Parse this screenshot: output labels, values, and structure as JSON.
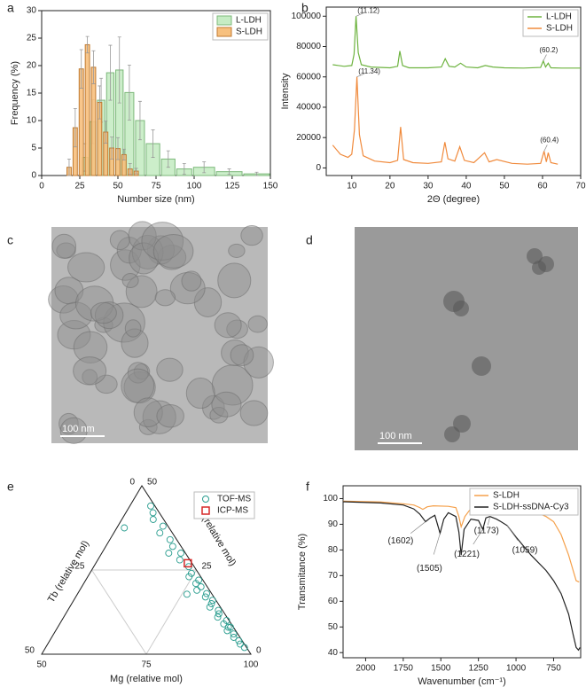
{
  "chart_data": [
    {
      "type": "histogram",
      "panel": "a",
      "xlabel": "Number size (nm)",
      "ylabel": "Frequency (%)",
      "xlim": [
        0,
        150
      ],
      "xticks": [
        0,
        25,
        50,
        75,
        100,
        125,
        150
      ],
      "ylim": [
        0,
        30
      ],
      "yticks": [
        0,
        5,
        10,
        15,
        20,
        25,
        30
      ],
      "legend": "upper right",
      "series": [
        {
          "name": "L-LDH",
          "color": "#c6ecc4",
          "edge": "#7cb87a",
          "bins": [
            26,
            31,
            36,
            42,
            48,
            54,
            61,
            68,
            78,
            88,
            99,
            114,
            132,
            150
          ],
          "values": [
            3.3,
            9.8,
            13.7,
            18.7,
            19.2,
            15.1,
            10.0,
            5.8,
            3.0,
            1.2,
            1.5,
            0.7,
            0.3
          ],
          "errors": [
            2.5,
            4,
            4,
            5,
            6,
            5,
            3.5,
            2.5,
            1.5,
            1,
            1,
            0.5,
            0.3
          ]
        },
        {
          "name": "S-LDH",
          "color": "#f7c07e",
          "edge": "#c07a30",
          "bins": [
            16,
            20,
            24,
            28,
            32,
            36,
            40,
            44,
            48,
            52,
            56,
            60,
            64
          ],
          "values": [
            1.5,
            8.7,
            19.4,
            23.8,
            19.7,
            13.3,
            7.9,
            5.0,
            4.9,
            3.8,
            1.2,
            0.8
          ],
          "errors": [
            1.5,
            3.5,
            3.5,
            1.5,
            3,
            3,
            2,
            2,
            2,
            1,
            1,
            0.5
          ]
        }
      ]
    },
    {
      "type": "line",
      "panel": "b",
      "xlabel": "2Θ (degree)",
      "ylabel": "Intensity",
      "xlim": [
        3.3,
        70
      ],
      "xticks": [
        10,
        20,
        30,
        40,
        50,
        60,
        70
      ],
      "ylim": [
        -5000,
        106000
      ],
      "yticks": [
        0,
        20000,
        40000,
        60000,
        80000,
        100000
      ],
      "legend": "upper right",
      "series": [
        {
          "name": "L-LDH",
          "color": "#6db33f",
          "x": [
            5,
            8,
            10,
            10.6,
            11.12,
            11.7,
            12.5,
            15,
            20,
            22,
            22.6,
            23.3,
            25,
            30,
            33.5,
            34.5,
            35.5,
            37,
            38.5,
            40,
            43,
            45,
            47,
            50,
            55,
            59.5,
            60.2,
            60.8,
            61.5,
            62.2,
            65,
            70
          ],
          "values": [
            68000,
            67000,
            67500,
            75000,
            100000,
            76000,
            68000,
            66500,
            66000,
            67000,
            77000,
            67500,
            66000,
            66000,
            66500,
            72000,
            67000,
            66500,
            69000,
            66500,
            66000,
            67500,
            66500,
            66000,
            65800,
            66200,
            70500,
            66500,
            69000,
            66000,
            65800,
            65800
          ]
        },
        {
          "name": "S-LDH",
          "color": "#f08a3c",
          "x": [
            5,
            7,
            9,
            10,
            10.7,
            11.34,
            12,
            13,
            16,
            20,
            22,
            22.8,
            23.6,
            26,
            30,
            33.5,
            34.4,
            35.2,
            37,
            38.3,
            39.5,
            42,
            44.8,
            46,
            48,
            52,
            56,
            59.5,
            60.4,
            61,
            61.5,
            62.2,
            64
          ],
          "values": [
            15000,
            9000,
            7000,
            9000,
            25000,
            60000,
            22000,
            8000,
            4500,
            3500,
            5000,
            27000,
            5500,
            3500,
            3000,
            4000,
            17000,
            6000,
            4500,
            14000,
            5000,
            3500,
            10000,
            4000,
            5500,
            3000,
            2500,
            3000,
            11000,
            4000,
            10000,
            3500,
            2500
          ]
        }
      ],
      "annotations": [
        {
          "text": "(11.12)",
          "x": 11.12,
          "y": 100000
        },
        {
          "text": "(60.2)",
          "x": 60.2,
          "y": 70500
        },
        {
          "text": "(11.34)",
          "x": 11.34,
          "y": 60000
        },
        {
          "text": "(60.4)",
          "x": 60.4,
          "y": 11000
        }
      ]
    },
    {
      "type": "ternary",
      "panel": "e",
      "tblabel": "Tb (relative mol)",
      "allabel": "Al (relative mol)",
      "mglabel": "Mg (relative mol)",
      "tblim": [
        0,
        50
      ],
      "allim": [
        0,
        50
      ],
      "mglim": [
        50,
        100
      ],
      "tbticks": [
        0,
        25,
        50
      ],
      "alticks": [
        0,
        25,
        50
      ],
      "mgticks": [
        50,
        75,
        100
      ],
      "legend": "upper right",
      "series": [
        {
          "name": "TOF-MS",
          "color": "#2a9d8f",
          "marker": "circle",
          "al": [
            2,
            3,
            4,
            5,
            6,
            7,
            8,
            9,
            10,
            11,
            12,
            13,
            14,
            15,
            16,
            17,
            18,
            19,
            20,
            21,
            22,
            23,
            24,
            26,
            28,
            30,
            32,
            34,
            36,
            38,
            40,
            42,
            44,
            17.8,
            37.5,
            30,
            8
          ],
          "tb": [
            0.5,
            1,
            0.8,
            1.5,
            1,
            2,
            1.2,
            1.8,
            0.6,
            2.2,
            1.4,
            1,
            2.5,
            1.6,
            0.8,
            2,
            1.2,
            3,
            1.5,
            2.2,
            1,
            2.8,
            1.7,
            1.3,
            2.4,
            1.1,
            2,
            1.6,
            3,
            1.2,
            2.5,
            1.5,
            1,
            6,
            10.7,
            4,
            0.7
          ]
        },
        {
          "name": "ICP-MS",
          "color": "#d62828",
          "marker": "square",
          "al": [
            27
          ],
          "tb": [
            1
          ]
        }
      ]
    },
    {
      "type": "line",
      "panel": "f",
      "xlabel": "Wavenumber (cm⁻¹)",
      "ylabel": "Transmitance (%)",
      "xlim": [
        2150,
        570
      ],
      "xticks": [
        2000,
        1750,
        1500,
        1250,
        1000,
        750
      ],
      "ylim": [
        38,
        105
      ],
      "yticks": [
        40,
        50,
        60,
        70,
        80,
        90,
        100
      ],
      "legend": "upper right",
      "series": [
        {
          "name": "S-LDH",
          "color": "#f5a04a",
          "x": [
            2150,
            1900,
            1750,
            1680,
            1640,
            1620,
            1590,
            1550,
            1450,
            1400,
            1380,
            1365,
            1340,
            1300,
            1200,
            1100,
            1000,
            900,
            800,
            750,
            700,
            650,
            620,
            600,
            580
          ],
          "values": [
            99,
            98.7,
            98,
            97.5,
            96.5,
            95.8,
            96.8,
            97.2,
            97,
            96.5,
            93,
            89,
            93,
            96.2,
            97,
            97,
            96.3,
            95.5,
            93,
            91,
            86,
            78,
            72,
            68,
            67.5
          ]
        },
        {
          "name": "S-LDH-ssDNA-Cy3",
          "color": "#222222",
          "x": [
            2150,
            1900,
            1750,
            1680,
            1640,
            1602,
            1570,
            1540,
            1505,
            1480,
            1450,
            1400,
            1380,
            1365,
            1345,
            1300,
            1250,
            1221,
            1200,
            1173,
            1130,
            1100,
            1059,
            1000,
            900,
            800,
            750,
            700,
            650,
            620,
            600,
            585,
            575
          ],
          "values": [
            98.8,
            98.3,
            97.5,
            96,
            94,
            91,
            92.5,
            93.5,
            86.5,
            92,
            94.5,
            93,
            87,
            78,
            88,
            92,
            91.5,
            88,
            92.5,
            93,
            92,
            91,
            89.5,
            85,
            78,
            72,
            68,
            63,
            55,
            47,
            42,
            41,
            42
          ]
        }
      ],
      "annotations": [
        {
          "text": "(1602)",
          "x": 1602,
          "y": 91
        },
        {
          "text": "(1505)",
          "x": 1505,
          "y": 86.5
        },
        {
          "text": "(1221)",
          "x": 1221,
          "y": 88
        },
        {
          "text": "(1173)",
          "x": 1173,
          "y": 93
        },
        {
          "text": "(1059)",
          "x": 1059,
          "y": 89.5
        }
      ]
    }
  ],
  "images": [
    {
      "panel": "c",
      "scale_bar": "100 nm"
    },
    {
      "panel": "d",
      "scale_bar": "100 nm"
    }
  ]
}
